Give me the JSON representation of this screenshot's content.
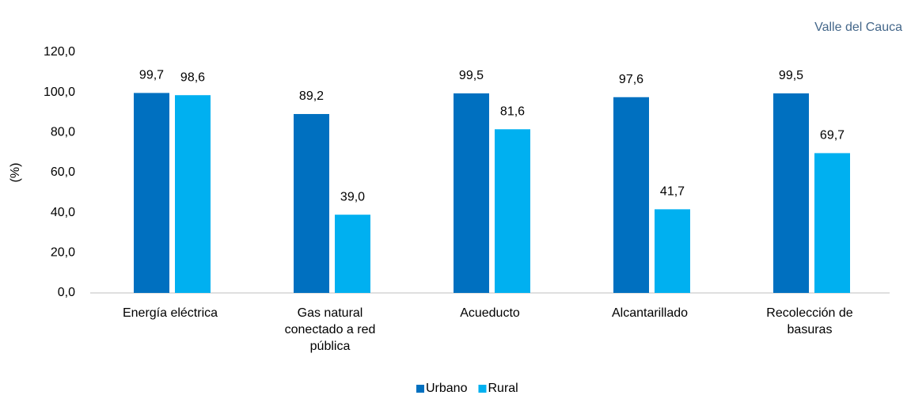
{
  "chart_data": {
    "type": "bar",
    "subtitle": "Valle del Cauca",
    "ylabel": "(%)",
    "categories": [
      "Energía eléctrica",
      "Gas natural conectado a red pública",
      "Acueducto",
      "Alcantarillado",
      "Recolección de basuras"
    ],
    "series": [
      {
        "name": "Urbano",
        "color": "#0070c0",
        "values": [
          99.7,
          89.2,
          99.5,
          97.6,
          99.5
        ],
        "value_labels": [
          "99,7",
          "89,2",
          "99,5",
          "97,6",
          "99,5"
        ]
      },
      {
        "name": "Rural",
        "color": "#00b0f0",
        "values": [
          98.6,
          39.0,
          81.6,
          41.7,
          69.7
        ],
        "value_labels": [
          "98,6",
          "39,0",
          "81,6",
          "41,7",
          "69,7"
        ]
      }
    ],
    "ylim": [
      0,
      120
    ],
    "yticks": [
      {
        "value": 0,
        "label": "0,0"
      },
      {
        "value": 20,
        "label": "20,0"
      },
      {
        "value": 40,
        "label": "40,0"
      },
      {
        "value": 60,
        "label": "60,0"
      },
      {
        "value": 80,
        "label": "80,0"
      },
      {
        "value": 100,
        "label": "100,0"
      },
      {
        "value": 120,
        "label": "120,0"
      }
    ],
    "grid": false,
    "legend": "bottom"
  }
}
